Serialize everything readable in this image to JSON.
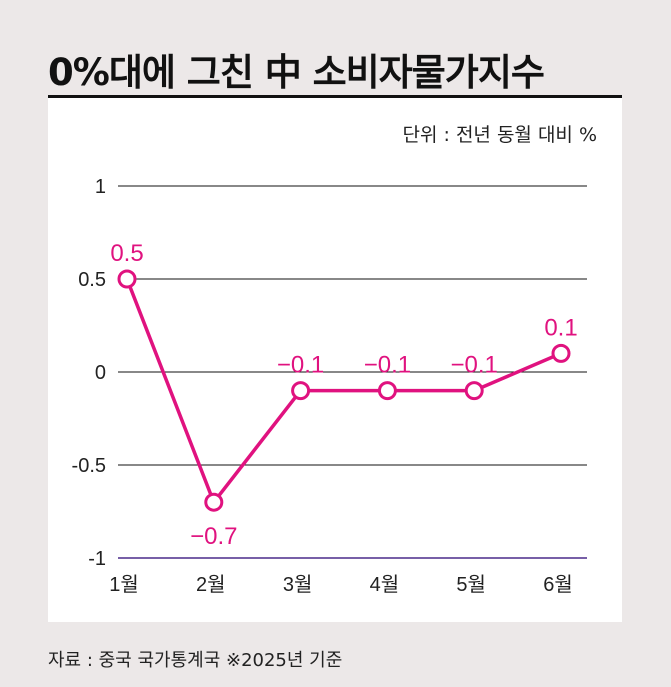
{
  "title": "0%대에 그친 中 소비자물가지수",
  "unit_note": "단위 : 전년 동월 대비 %",
  "source": "자료 : 중국 국가통계국 ※2025년 기준",
  "colors": {
    "series": "#e0127f",
    "grid": "#111111",
    "background": "#ece8e8",
    "panel": "#ffffff",
    "axis_bottom": "#4a2a8a"
  },
  "chart_data": {
    "type": "line",
    "categories": [
      "1월",
      "2월",
      "3월",
      "4월",
      "5월",
      "6월"
    ],
    "yticks": [
      "1",
      "0.5",
      "0",
      "-0.5",
      "-1"
    ],
    "ylim": [
      -1,
      1
    ],
    "grid": true,
    "series": [
      {
        "values": [
          0.5,
          -0.7,
          -0.1,
          -0.1,
          -0.1,
          0.1
        ],
        "labels": [
          "0.5",
          "−0.7",
          "−0.1",
          "−0.1",
          "−0.1",
          "0.1"
        ]
      }
    ]
  }
}
